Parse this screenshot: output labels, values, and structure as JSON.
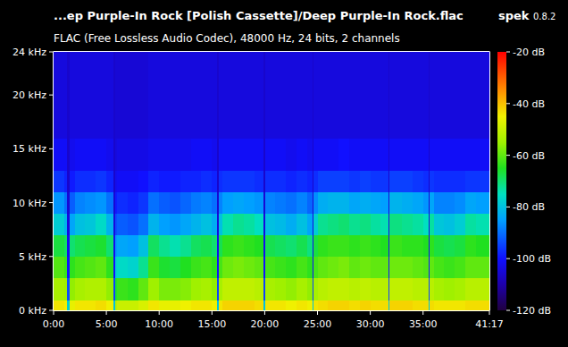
{
  "chart_data": {
    "type": "heatmap",
    "title": "...ep Purple-In Rock [Polish Cassette]/Deep Purple-In Rock.flac",
    "app_name": "spek",
    "app_version": "0.8.2",
    "subtitle": "FLAC (Free Lossless Audio Codec), 48000 Hz, 24 bits, 2 channels",
    "xlim": [
      0,
      41.2833
    ],
    "xticks": [
      {
        "value": 0,
        "label": "0:00"
      },
      {
        "value": 5,
        "label": "5:00"
      },
      {
        "value": 10,
        "label": "10:00"
      },
      {
        "value": 15,
        "label": "15:00"
      },
      {
        "value": 20,
        "label": "20:00"
      },
      {
        "value": 25,
        "label": "25:00"
      },
      {
        "value": 30,
        "label": "30:00"
      },
      {
        "value": 35,
        "label": "35:00"
      },
      {
        "value": 41.2833,
        "label": "41:17"
      }
    ],
    "ylim": [
      0,
      24
    ],
    "yticks": [
      {
        "value": 0,
        "label": "0 kHz"
      },
      {
        "value": 5,
        "label": "5 kHz"
      },
      {
        "value": 10,
        "label": "10 kHz"
      },
      {
        "value": 15,
        "label": "15 kHz"
      },
      {
        "value": 20,
        "label": "20 kHz"
      },
      {
        "value": 24,
        "label": "24 kHz"
      }
    ],
    "x_edges": [
      0,
      1,
      1.3,
      1.5,
      2,
      3,
      4,
      5,
      5.65,
      5.8,
      6,
      7,
      8,
      9,
      10,
      11,
      12,
      13,
      14,
      15,
      15.5,
      15.65,
      16,
      17,
      18,
      19,
      19.9,
      20.05,
      21,
      22,
      23,
      24,
      24.5,
      24.65,
      25,
      26,
      27,
      28,
      29,
      30,
      31,
      31.7,
      31.85,
      33,
      34,
      35,
      35.5,
      35.65,
      36,
      37,
      38,
      39,
      40,
      41.2833
    ],
    "y_edges": [
      0,
      1,
      3,
      5,
      7,
      9,
      11,
      13,
      16,
      24
    ],
    "cells": [
      [
        -44,
        -54,
        -61,
        -67,
        -78,
        -86,
        -96,
        -101,
        -104
      ],
      [
        -45,
        -55,
        -63,
        -69,
        -82,
        -90,
        -98,
        -101,
        -104
      ],
      [
        -78,
        -94,
        -100,
        -102,
        -104,
        -105,
        -106,
        -106,
        -106
      ],
      [
        -46,
        -56,
        -64,
        -70,
        -84,
        -92,
        -99,
        -102,
        -104
      ],
      [
        -44,
        -54,
        -62,
        -68,
        -80,
        -88,
        -97,
        -101,
        -104
      ],
      [
        -44,
        -53,
        -61,
        -67,
        -79,
        -87,
        -97,
        -101,
        -104
      ],
      [
        -43,
        -53,
        -60,
        -66,
        -76,
        -86,
        -96,
        -101,
        -104
      ],
      [
        -45,
        -56,
        -64,
        -70,
        -82,
        -90,
        -98,
        -102,
        -104
      ],
      [
        -80,
        -95,
        -100,
        -102,
        -104,
        -105,
        -106,
        -106,
        -106
      ],
      [
        -52,
        -66,
        -78,
        -86,
        -94,
        -99,
        -102,
        -104,
        -105
      ],
      [
        -50,
        -63,
        -76,
        -84,
        -92,
        -97,
        -101,
        -103,
        -105
      ],
      [
        -50,
        -64,
        -77,
        -85,
        -93,
        -98,
        -101,
        -103,
        -105
      ],
      [
        -48,
        -60,
        -72,
        -80,
        -90,
        -96,
        -100,
        -103,
        -105
      ],
      [
        -44,
        -55,
        -63,
        -69,
        -82,
        -90,
        -98,
        -102,
        -104
      ],
      [
        -46,
        -58,
        -66,
        -72,
        -85,
        -92,
        -99,
        -102,
        -104
      ],
      [
        -46,
        -58,
        -67,
        -74,
        -86,
        -93,
        -99,
        -102,
        -104
      ],
      [
        -45,
        -57,
        -65,
        -72,
        -84,
        -91,
        -98,
        -102,
        -104
      ],
      [
        -44,
        -55,
        -63,
        -69,
        -82,
        -89,
        -98,
        -101,
        -104
      ],
      [
        -44,
        -54,
        -62,
        -68,
        -80,
        -88,
        -97,
        -101,
        -104
      ],
      [
        -45,
        -56,
        -64,
        -70,
        -83,
        -90,
        -98,
        -102,
        -104
      ],
      [
        -80,
        -95,
        -100,
        -102,
        -104,
        -105,
        -106,
        -106,
        -106
      ],
      [
        -44,
        -54,
        -62,
        -68,
        -80,
        -88,
        -97,
        -101,
        -104
      ],
      [
        -42,
        -51,
        -59,
        -64,
        -74,
        -85,
        -96,
        -101,
        -104
      ],
      [
        -42,
        -51,
        -58,
        -63,
        -72,
        -84,
        -96,
        -101,
        -104
      ],
      [
        -42,
        -51,
        -59,
        -64,
        -73,
        -85,
        -96,
        -101,
        -104
      ],
      [
        -43,
        -52,
        -60,
        -65,
        -75,
        -86,
        -97,
        -101,
        -104
      ],
      [
        -80,
        -95,
        -100,
        -102,
        -104,
        -105,
        -106,
        -106,
        -106
      ],
      [
        -44,
        -54,
        -62,
        -68,
        -80,
        -88,
        -97,
        -101,
        -104
      ],
      [
        -44,
        -55,
        -63,
        -69,
        -81,
        -89,
        -97,
        -101,
        -104
      ],
      [
        -45,
        -56,
        -64,
        -70,
        -83,
        -90,
        -98,
        -102,
        -104
      ],
      [
        -44,
        -54,
        -62,
        -68,
        -80,
        -88,
        -97,
        -101,
        -104
      ],
      [
        -45,
        -56,
        -64,
        -71,
        -84,
        -91,
        -98,
        -102,
        -104
      ],
      [
        -80,
        -95,
        -100,
        -102,
        -104,
        -105,
        -106,
        -106,
        -106
      ],
      [
        -44,
        -54,
        -62,
        -67,
        -78,
        -87,
        -97,
        -101,
        -104
      ],
      [
        -43,
        -52,
        -60,
        -64,
        -72,
        -83,
        -95,
        -101,
        -104
      ],
      [
        -42,
        -51,
        -59,
        -63,
        -71,
        -82,
        -95,
        -101,
        -104
      ],
      [
        -42,
        -51,
        -58,
        -63,
        -70,
        -82,
        -95,
        -100,
        -104
      ],
      [
        -43,
        -52,
        -60,
        -64,
        -72,
        -84,
        -96,
        -101,
        -104
      ],
      [
        -42,
        -51,
        -59,
        -63,
        -71,
        -83,
        -95,
        -101,
        -104
      ],
      [
        -43,
        -52,
        -60,
        -64,
        -73,
        -84,
        -96,
        -101,
        -104
      ],
      [
        -43,
        -52,
        -60,
        -65,
        -74,
        -85,
        -96,
        -101,
        -104
      ],
      [
        -80,
        -95,
        -100,
        -102,
        -104,
        -105,
        -106,
        -106,
        -106
      ],
      [
        -42,
        -51,
        -59,
        -63,
        -71,
        -82,
        -95,
        -101,
        -104
      ],
      [
        -42,
        -51,
        -59,
        -64,
        -72,
        -83,
        -95,
        -101,
        -104
      ],
      [
        -43,
        -52,
        -60,
        -64,
        -73,
        -84,
        -96,
        -101,
        -104
      ],
      [
        -43,
        -52,
        -61,
        -65,
        -75,
        -86,
        -97,
        -101,
        -104
      ],
      [
        -80,
        -95,
        -100,
        -102,
        -104,
        -105,
        -106,
        -106,
        -106
      ],
      [
        -43,
        -52,
        -60,
        -64,
        -73,
        -84,
        -96,
        -101,
        -104
      ],
      [
        -44,
        -54,
        -62,
        -67,
        -79,
        -88,
        -97,
        -101,
        -104
      ],
      [
        -44,
        -55,
        -63,
        -68,
        -80,
        -88,
        -97,
        -101,
        -104
      ],
      [
        -44,
        -54,
        -62,
        -67,
        -78,
        -87,
        -97,
        -101,
        -104
      ],
      [
        -43,
        -52,
        -60,
        -64,
        -73,
        -84,
        -96,
        -101,
        -104
      ],
      [
        -43,
        -52,
        -60,
        -65,
        -74,
        -85,
        -96,
        -101,
        -104
      ]
    ],
    "colorbar": {
      "range": [
        -120,
        -20
      ],
      "ticks": [
        {
          "value": -20,
          "label": "-20 dB"
        },
        {
          "value": -40,
          "label": "-40 dB"
        },
        {
          "value": -60,
          "label": "-60 dB"
        },
        {
          "value": -80,
          "label": "-80 dB"
        },
        {
          "value": -100,
          "label": "-100 dB"
        },
        {
          "value": -120,
          "label": "-120 dB"
        }
      ]
    }
  }
}
